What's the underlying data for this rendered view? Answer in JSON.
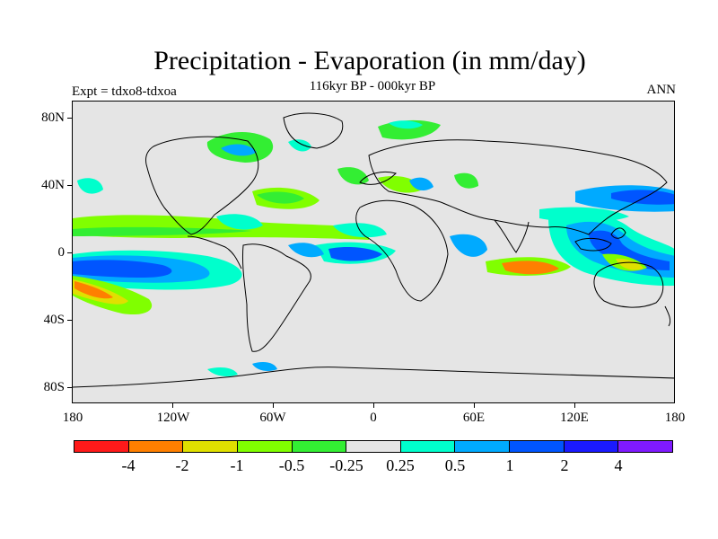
{
  "title": "Precipitation - Evaporation (in mm/day)",
  "subtitle": "116kyr BP - 000kyr BP",
  "left_label": "Expt = tdxo8-tdxoa",
  "right_label": "ANN",
  "lat_labels": [
    "80N",
    "40N",
    "0",
    "40S",
    "80S"
  ],
  "lon_labels": [
    "180",
    "120W",
    "60W",
    "0",
    "60E",
    "120E",
    "180"
  ],
  "colorbar": {
    "colors": [
      "#ff1a1a",
      "#ff7f00",
      "#e0e000",
      "#80ff00",
      "#33ee33",
      "#e5e5e5",
      "#00ffcc",
      "#00aaff",
      "#0055ff",
      "#1a1aff",
      "#7f1aff"
    ],
    "labels": [
      "-4",
      "-2",
      "-1",
      "-0.5",
      "-0.25",
      "0.25",
      "0.5",
      "1",
      "2",
      "4"
    ]
  },
  "map_data": {
    "projection": "cylindrical-equidistant",
    "lon_range": [
      -180,
      180
    ],
    "lat_range": [
      -90,
      90
    ],
    "background_class": "0.25 to -0.25",
    "features": [
      {
        "region": "Equatorial East Pacific",
        "lon": [
          -180,
          -100
        ],
        "lat": [
          -12,
          0
        ],
        "class": 1
      },
      {
        "region": "South Pacific",
        "lon": [
          -180,
          -120
        ],
        "lat": [
          -28,
          -12
        ],
        "class": -1
      },
      {
        "region": "South Pacific",
        "lon": [
          -175,
          -145
        ],
        "lat": [
          -25,
          -18
        ],
        "class": -2
      },
      {
        "region": "Tropical Atlantic",
        "lon": [
          -30,
          5
        ],
        "lat": [
          -5,
          2
        ],
        "class": 1
      },
      {
        "region": "Equatorial Indian Ocean",
        "lon": [
          55,
          100
        ],
        "lat": [
          -8,
          0
        ],
        "class": -2
      },
      {
        "region": "Western Pacific",
        "lon": [
          120,
          180
        ],
        "lat": [
          -5,
          15
        ],
        "class": 1
      },
      {
        "region": "North Pacific",
        "lon": [
          140,
          180
        ],
        "lat": [
          25,
          35
        ],
        "class": 1
      }
    ]
  }
}
